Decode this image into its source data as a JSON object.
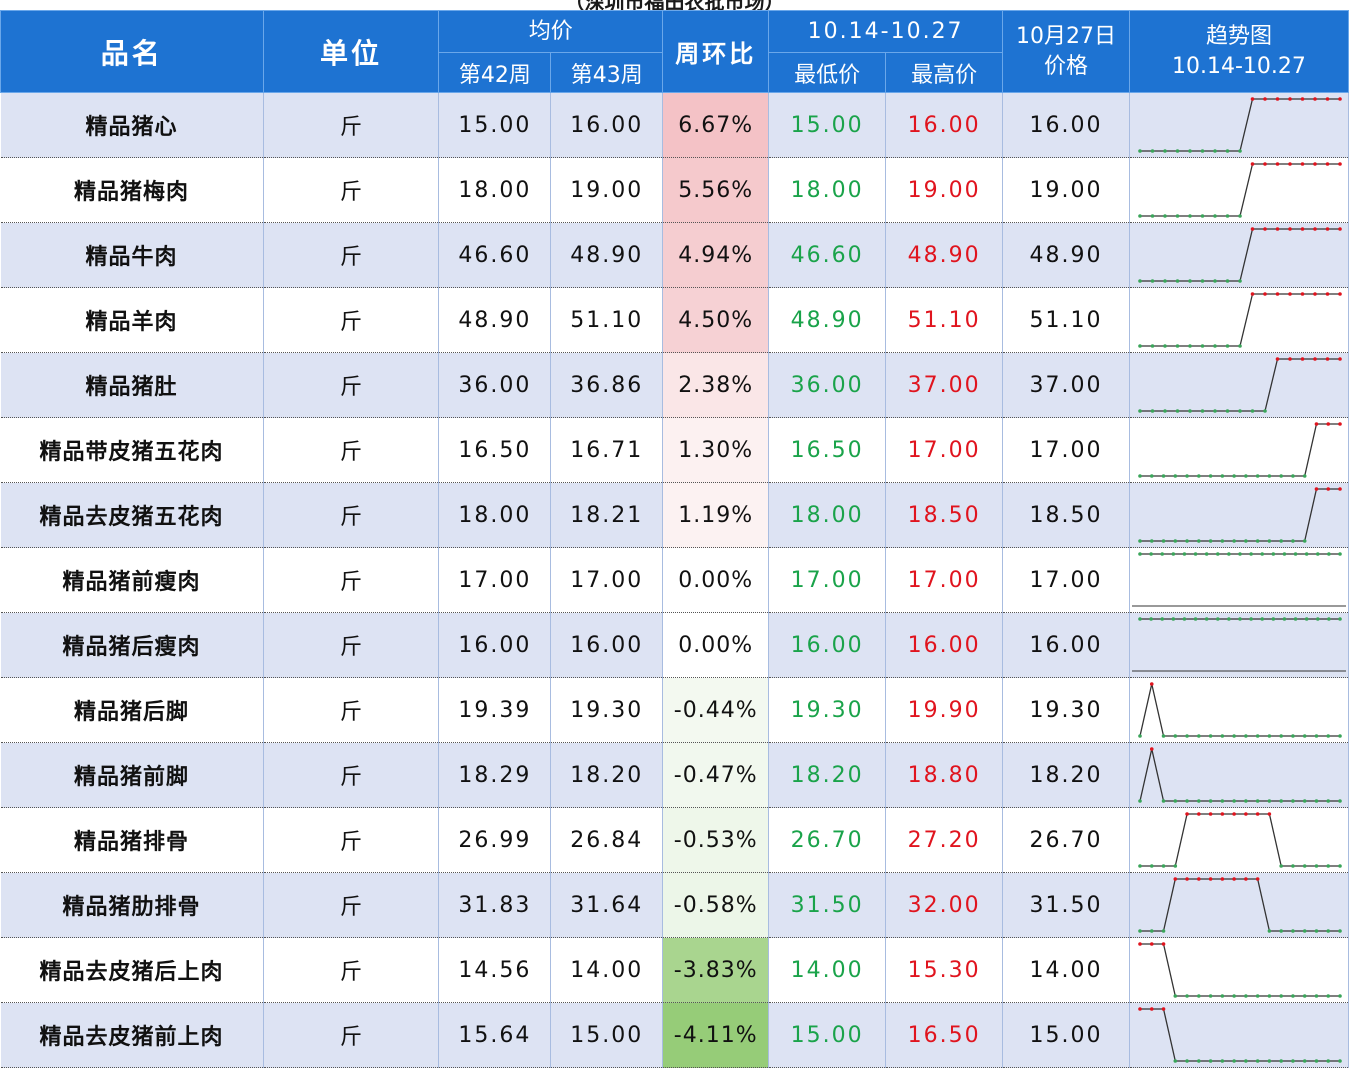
{
  "header": {
    "top_title": "（深圳市福田农批市场）",
    "name": "品名",
    "unit": "单位",
    "avg": "均价",
    "week42": "第42周",
    "week43": "第43周",
    "wow": "周环比",
    "range": "10.14-10.27",
    "low": "最低价",
    "high": "最高价",
    "oct27_line1": "10月27日",
    "oct27_line2": "价格",
    "trend_line1": "趋势图",
    "trend_line2": "10.14-10.27"
  },
  "colors": {
    "header_bg": "#1e73d2",
    "row_alt": "#dde3f3",
    "low_text": "#1aa34a",
    "high_text": "#e0141e"
  },
  "rows": [
    {
      "name": "精品猪心",
      "unit": "斤",
      "w42": "15.00",
      "w43": "16.00",
      "wow": "6.67%",
      "low": "15.00",
      "high": "16.00",
      "oct27": "16.00",
      "wow_bg": "#f4c2c6",
      "trend": [
        15,
        15,
        15,
        15,
        15,
        15,
        15,
        15,
        15,
        16,
        16,
        16,
        16,
        16,
        16,
        16,
        16
      ]
    },
    {
      "name": "精品猪梅肉",
      "unit": "斤",
      "w42": "18.00",
      "w43": "19.00",
      "wow": "5.56%",
      "low": "18.00",
      "high": "19.00",
      "oct27": "19.00",
      "wow_bg": "#f5c9cc",
      "trend": [
        18,
        18,
        18,
        18,
        18,
        18,
        18,
        18,
        18,
        19,
        19,
        19,
        19,
        19,
        19,
        19,
        19
      ]
    },
    {
      "name": "精品牛肉",
      "unit": "斤",
      "w42": "46.60",
      "w43": "48.90",
      "wow": "4.94%",
      "low": "46.60",
      "high": "48.90",
      "oct27": "48.90",
      "wow_bg": "#f5cdd0",
      "trend": [
        46.6,
        46.6,
        46.6,
        46.6,
        46.6,
        46.6,
        46.6,
        46.6,
        46.6,
        48.9,
        48.9,
        48.9,
        48.9,
        48.9,
        48.9,
        48.9,
        48.9
      ]
    },
    {
      "name": "精品羊肉",
      "unit": "斤",
      "w42": "48.90",
      "w43": "51.10",
      "wow": "4.50%",
      "low": "48.90",
      "high": "51.10",
      "oct27": "51.10",
      "wow_bg": "#f6d1d4",
      "trend": [
        48.9,
        48.9,
        48.9,
        48.9,
        48.9,
        48.9,
        48.9,
        48.9,
        48.9,
        51.1,
        51.1,
        51.1,
        51.1,
        51.1,
        51.1,
        51.1,
        51.1
      ]
    },
    {
      "name": "精品猪肚",
      "unit": "斤",
      "w42": "36.00",
      "w43": "36.86",
      "wow": "2.38%",
      "low": "36.00",
      "high": "37.00",
      "oct27": "37.00",
      "wow_bg": "#fae6e7",
      "trend": [
        36,
        36,
        36,
        36,
        36,
        36,
        36,
        36,
        36,
        36,
        36,
        37,
        37,
        37,
        37,
        37,
        37
      ]
    },
    {
      "name": "精品带皮猪五花肉",
      "unit": "斤",
      "w42": "16.50",
      "w43": "16.71",
      "wow": "1.30%",
      "low": "16.50",
      "high": "17.00",
      "oct27": "17.00",
      "wow_bg": "#fcf1f1",
      "trend": [
        16.5,
        16.5,
        16.5,
        16.5,
        16.5,
        16.5,
        16.5,
        16.5,
        16.5,
        16.5,
        16.5,
        16.5,
        16.5,
        16.5,
        16.5,
        17,
        17,
        17
      ]
    },
    {
      "name": "精品去皮猪五花肉",
      "unit": "斤",
      "w42": "18.00",
      "w43": "18.21",
      "wow": "1.19%",
      "low": "18.00",
      "high": "18.50",
      "oct27": "18.50",
      "wow_bg": "#fcf2f2",
      "trend": [
        18,
        18,
        18,
        18,
        18,
        18,
        18,
        18,
        18,
        18,
        18,
        18,
        18,
        18,
        18,
        18.5,
        18.5,
        18.5
      ]
    },
    {
      "name": "精品猪前瘦肉",
      "unit": "斤",
      "w42": "17.00",
      "w43": "17.00",
      "wow": "0.00%",
      "low": "17.00",
      "high": "17.00",
      "oct27": "17.00",
      "wow_bg": "#ffffff",
      "trend": [
        17,
        17,
        17,
        17,
        17,
        17,
        17,
        17,
        17,
        17,
        17,
        17,
        17,
        17,
        17,
        17,
        17,
        17,
        17
      ]
    },
    {
      "name": "精品猪后瘦肉",
      "unit": "斤",
      "w42": "16.00",
      "w43": "16.00",
      "wow": "0.00%",
      "low": "16.00",
      "high": "16.00",
      "oct27": "16.00",
      "wow_bg": "#ffffff",
      "trend": [
        16,
        16,
        16,
        16,
        16,
        16,
        16,
        16,
        16,
        16,
        16,
        16,
        16,
        16,
        16,
        16,
        16,
        16,
        16
      ]
    },
    {
      "name": "精品猪后脚",
      "unit": "斤",
      "w42": "19.39",
      "w43": "19.30",
      "wow": "-0.44%",
      "low": "19.30",
      "high": "19.90",
      "oct27": "19.30",
      "wow_bg": "#f3f9f0",
      "trend": [
        19.3,
        19.9,
        19.3,
        19.3,
        19.3,
        19.3,
        19.3,
        19.3,
        19.3,
        19.3,
        19.3,
        19.3,
        19.3,
        19.3,
        19.3,
        19.3,
        19.3,
        19.3
      ]
    },
    {
      "name": "精品猪前脚",
      "unit": "斤",
      "w42": "18.29",
      "w43": "18.20",
      "wow": "-0.47%",
      "low": "18.20",
      "high": "18.80",
      "oct27": "18.20",
      "wow_bg": "#f1f8ee",
      "trend": [
        18.2,
        18.8,
        18.2,
        18.2,
        18.2,
        18.2,
        18.2,
        18.2,
        18.2,
        18.2,
        18.2,
        18.2,
        18.2,
        18.2,
        18.2,
        18.2,
        18.2,
        18.2
      ]
    },
    {
      "name": "精品猪排骨",
      "unit": "斤",
      "w42": "26.99",
      "w43": "26.84",
      "wow": "-0.53%",
      "low": "26.70",
      "high": "27.20",
      "oct27": "26.70",
      "wow_bg": "#eef7ea",
      "trend": [
        26.7,
        26.7,
        26.7,
        26.7,
        27.2,
        27.2,
        27.2,
        27.2,
        27.2,
        27.2,
        27.2,
        27.2,
        26.7,
        26.7,
        26.7,
        26.7,
        26.7,
        26.7
      ]
    },
    {
      "name": "精品猪肋排骨",
      "unit": "斤",
      "w42": "31.83",
      "w43": "31.64",
      "wow": "-0.58%",
      "low": "31.50",
      "high": "32.00",
      "oct27": "31.50",
      "wow_bg": "#ecf6e8",
      "trend": [
        31.5,
        31.5,
        31.5,
        32,
        32,
        32,
        32,
        32,
        32,
        32,
        32,
        31.5,
        31.5,
        31.5,
        31.5,
        31.5,
        31.5,
        31.5
      ]
    },
    {
      "name": "精品去皮猪后上肉",
      "unit": "斤",
      "w42": "14.56",
      "w43": "14.00",
      "wow": "-3.83%",
      "low": "14.00",
      "high": "15.30",
      "oct27": "14.00",
      "wow_bg": "#a9d58f",
      "trend": [
        15.3,
        15.3,
        15.3,
        14,
        14,
        14,
        14,
        14,
        14,
        14,
        14,
        14,
        14,
        14,
        14,
        14,
        14,
        14
      ]
    },
    {
      "name": "精品去皮猪前上肉",
      "unit": "斤",
      "w42": "15.64",
      "w43": "15.00",
      "wow": "-4.11%",
      "low": "15.00",
      "high": "16.50",
      "oct27": "15.00",
      "wow_bg": "#96cc78",
      "trend": [
        16.5,
        16.5,
        16.5,
        15,
        15,
        15,
        15,
        15,
        15,
        15,
        15,
        15,
        15,
        15,
        15,
        15,
        15,
        15
      ]
    }
  ]
}
